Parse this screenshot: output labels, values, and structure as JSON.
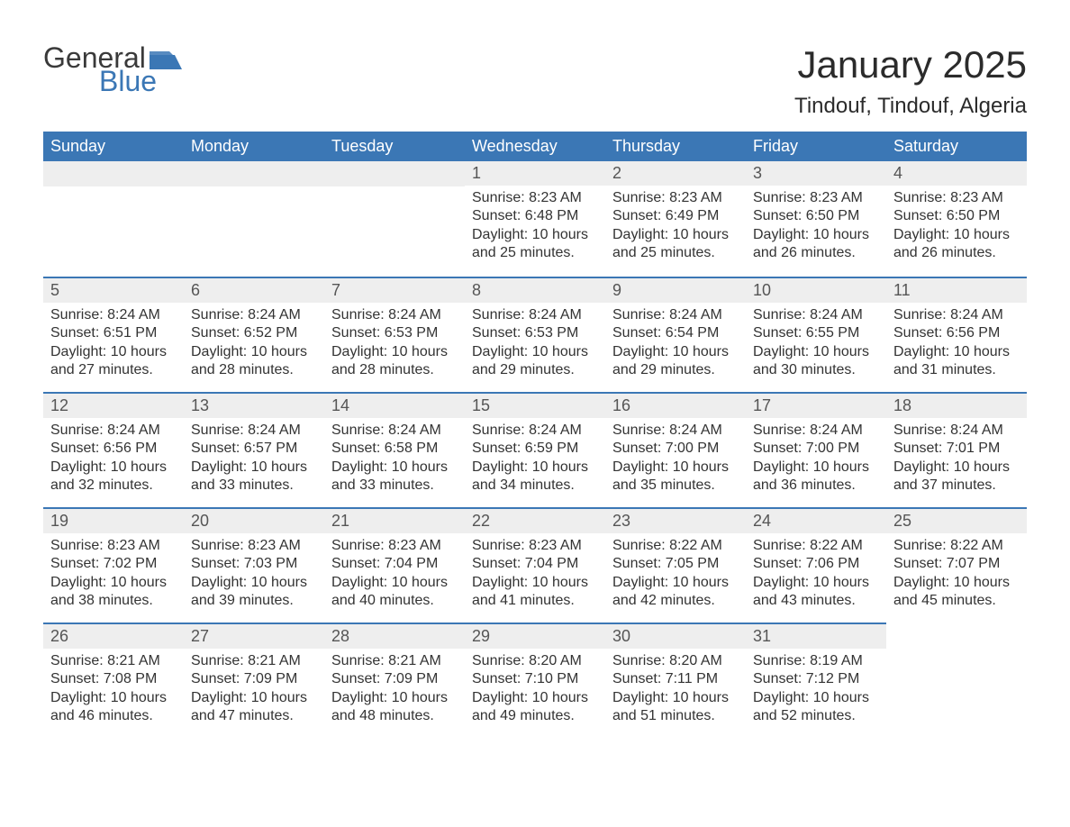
{
  "logo": {
    "general": "General",
    "blue": "Blue",
    "flag_color": "#3b77b5"
  },
  "title": "January 2025",
  "location": "Tindouf, Tindouf, Algeria",
  "colors": {
    "header_bg": "#3b77b5",
    "header_text": "#ffffff",
    "band_bg": "#eeeeee",
    "band_border": "#3b77b5",
    "text": "#333333",
    "daynum": "#555555",
    "page_bg": "#ffffff"
  },
  "fonts": {
    "title_size_pt": 32,
    "location_size_pt": 18,
    "header_size_pt": 14,
    "daynum_size_pt": 14,
    "body_size_pt": 12
  },
  "weekdays": [
    "Sunday",
    "Monday",
    "Tuesday",
    "Wednesday",
    "Thursday",
    "Friday",
    "Saturday"
  ],
  "weeks": [
    [
      null,
      null,
      null,
      {
        "n": "1",
        "sunrise": "Sunrise: 8:23 AM",
        "sunset": "Sunset: 6:48 PM",
        "daylight": "Daylight: 10 hours and 25 minutes."
      },
      {
        "n": "2",
        "sunrise": "Sunrise: 8:23 AM",
        "sunset": "Sunset: 6:49 PM",
        "daylight": "Daylight: 10 hours and 25 minutes."
      },
      {
        "n": "3",
        "sunrise": "Sunrise: 8:23 AM",
        "sunset": "Sunset: 6:50 PM",
        "daylight": "Daylight: 10 hours and 26 minutes."
      },
      {
        "n": "4",
        "sunrise": "Sunrise: 8:23 AM",
        "sunset": "Sunset: 6:50 PM",
        "daylight": "Daylight: 10 hours and 26 minutes."
      }
    ],
    [
      {
        "n": "5",
        "sunrise": "Sunrise: 8:24 AM",
        "sunset": "Sunset: 6:51 PM",
        "daylight": "Daylight: 10 hours and 27 minutes."
      },
      {
        "n": "6",
        "sunrise": "Sunrise: 8:24 AM",
        "sunset": "Sunset: 6:52 PM",
        "daylight": "Daylight: 10 hours and 28 minutes."
      },
      {
        "n": "7",
        "sunrise": "Sunrise: 8:24 AM",
        "sunset": "Sunset: 6:53 PM",
        "daylight": "Daylight: 10 hours and 28 minutes."
      },
      {
        "n": "8",
        "sunrise": "Sunrise: 8:24 AM",
        "sunset": "Sunset: 6:53 PM",
        "daylight": "Daylight: 10 hours and 29 minutes."
      },
      {
        "n": "9",
        "sunrise": "Sunrise: 8:24 AM",
        "sunset": "Sunset: 6:54 PM",
        "daylight": "Daylight: 10 hours and 29 minutes."
      },
      {
        "n": "10",
        "sunrise": "Sunrise: 8:24 AM",
        "sunset": "Sunset: 6:55 PM",
        "daylight": "Daylight: 10 hours and 30 minutes."
      },
      {
        "n": "11",
        "sunrise": "Sunrise: 8:24 AM",
        "sunset": "Sunset: 6:56 PM",
        "daylight": "Daylight: 10 hours and 31 minutes."
      }
    ],
    [
      {
        "n": "12",
        "sunrise": "Sunrise: 8:24 AM",
        "sunset": "Sunset: 6:56 PM",
        "daylight": "Daylight: 10 hours and 32 minutes."
      },
      {
        "n": "13",
        "sunrise": "Sunrise: 8:24 AM",
        "sunset": "Sunset: 6:57 PM",
        "daylight": "Daylight: 10 hours and 33 minutes."
      },
      {
        "n": "14",
        "sunrise": "Sunrise: 8:24 AM",
        "sunset": "Sunset: 6:58 PM",
        "daylight": "Daylight: 10 hours and 33 minutes."
      },
      {
        "n": "15",
        "sunrise": "Sunrise: 8:24 AM",
        "sunset": "Sunset: 6:59 PM",
        "daylight": "Daylight: 10 hours and 34 minutes."
      },
      {
        "n": "16",
        "sunrise": "Sunrise: 8:24 AM",
        "sunset": "Sunset: 7:00 PM",
        "daylight": "Daylight: 10 hours and 35 minutes."
      },
      {
        "n": "17",
        "sunrise": "Sunrise: 8:24 AM",
        "sunset": "Sunset: 7:00 PM",
        "daylight": "Daylight: 10 hours and 36 minutes."
      },
      {
        "n": "18",
        "sunrise": "Sunrise: 8:24 AM",
        "sunset": "Sunset: 7:01 PM",
        "daylight": "Daylight: 10 hours and 37 minutes."
      }
    ],
    [
      {
        "n": "19",
        "sunrise": "Sunrise: 8:23 AM",
        "sunset": "Sunset: 7:02 PM",
        "daylight": "Daylight: 10 hours and 38 minutes."
      },
      {
        "n": "20",
        "sunrise": "Sunrise: 8:23 AM",
        "sunset": "Sunset: 7:03 PM",
        "daylight": "Daylight: 10 hours and 39 minutes."
      },
      {
        "n": "21",
        "sunrise": "Sunrise: 8:23 AM",
        "sunset": "Sunset: 7:04 PM",
        "daylight": "Daylight: 10 hours and 40 minutes."
      },
      {
        "n": "22",
        "sunrise": "Sunrise: 8:23 AM",
        "sunset": "Sunset: 7:04 PM",
        "daylight": "Daylight: 10 hours and 41 minutes."
      },
      {
        "n": "23",
        "sunrise": "Sunrise: 8:22 AM",
        "sunset": "Sunset: 7:05 PM",
        "daylight": "Daylight: 10 hours and 42 minutes."
      },
      {
        "n": "24",
        "sunrise": "Sunrise: 8:22 AM",
        "sunset": "Sunset: 7:06 PM",
        "daylight": "Daylight: 10 hours and 43 minutes."
      },
      {
        "n": "25",
        "sunrise": "Sunrise: 8:22 AM",
        "sunset": "Sunset: 7:07 PM",
        "daylight": "Daylight: 10 hours and 45 minutes."
      }
    ],
    [
      {
        "n": "26",
        "sunrise": "Sunrise: 8:21 AM",
        "sunset": "Sunset: 7:08 PM",
        "daylight": "Daylight: 10 hours and 46 minutes."
      },
      {
        "n": "27",
        "sunrise": "Sunrise: 8:21 AM",
        "sunset": "Sunset: 7:09 PM",
        "daylight": "Daylight: 10 hours and 47 minutes."
      },
      {
        "n": "28",
        "sunrise": "Sunrise: 8:21 AM",
        "sunset": "Sunset: 7:09 PM",
        "daylight": "Daylight: 10 hours and 48 minutes."
      },
      {
        "n": "29",
        "sunrise": "Sunrise: 8:20 AM",
        "sunset": "Sunset: 7:10 PM",
        "daylight": "Daylight: 10 hours and 49 minutes."
      },
      {
        "n": "30",
        "sunrise": "Sunrise: 8:20 AM",
        "sunset": "Sunset: 7:11 PM",
        "daylight": "Daylight: 10 hours and 51 minutes."
      },
      {
        "n": "31",
        "sunrise": "Sunrise: 8:19 AM",
        "sunset": "Sunset: 7:12 PM",
        "daylight": "Daylight: 10 hours and 52 minutes."
      },
      null
    ]
  ]
}
